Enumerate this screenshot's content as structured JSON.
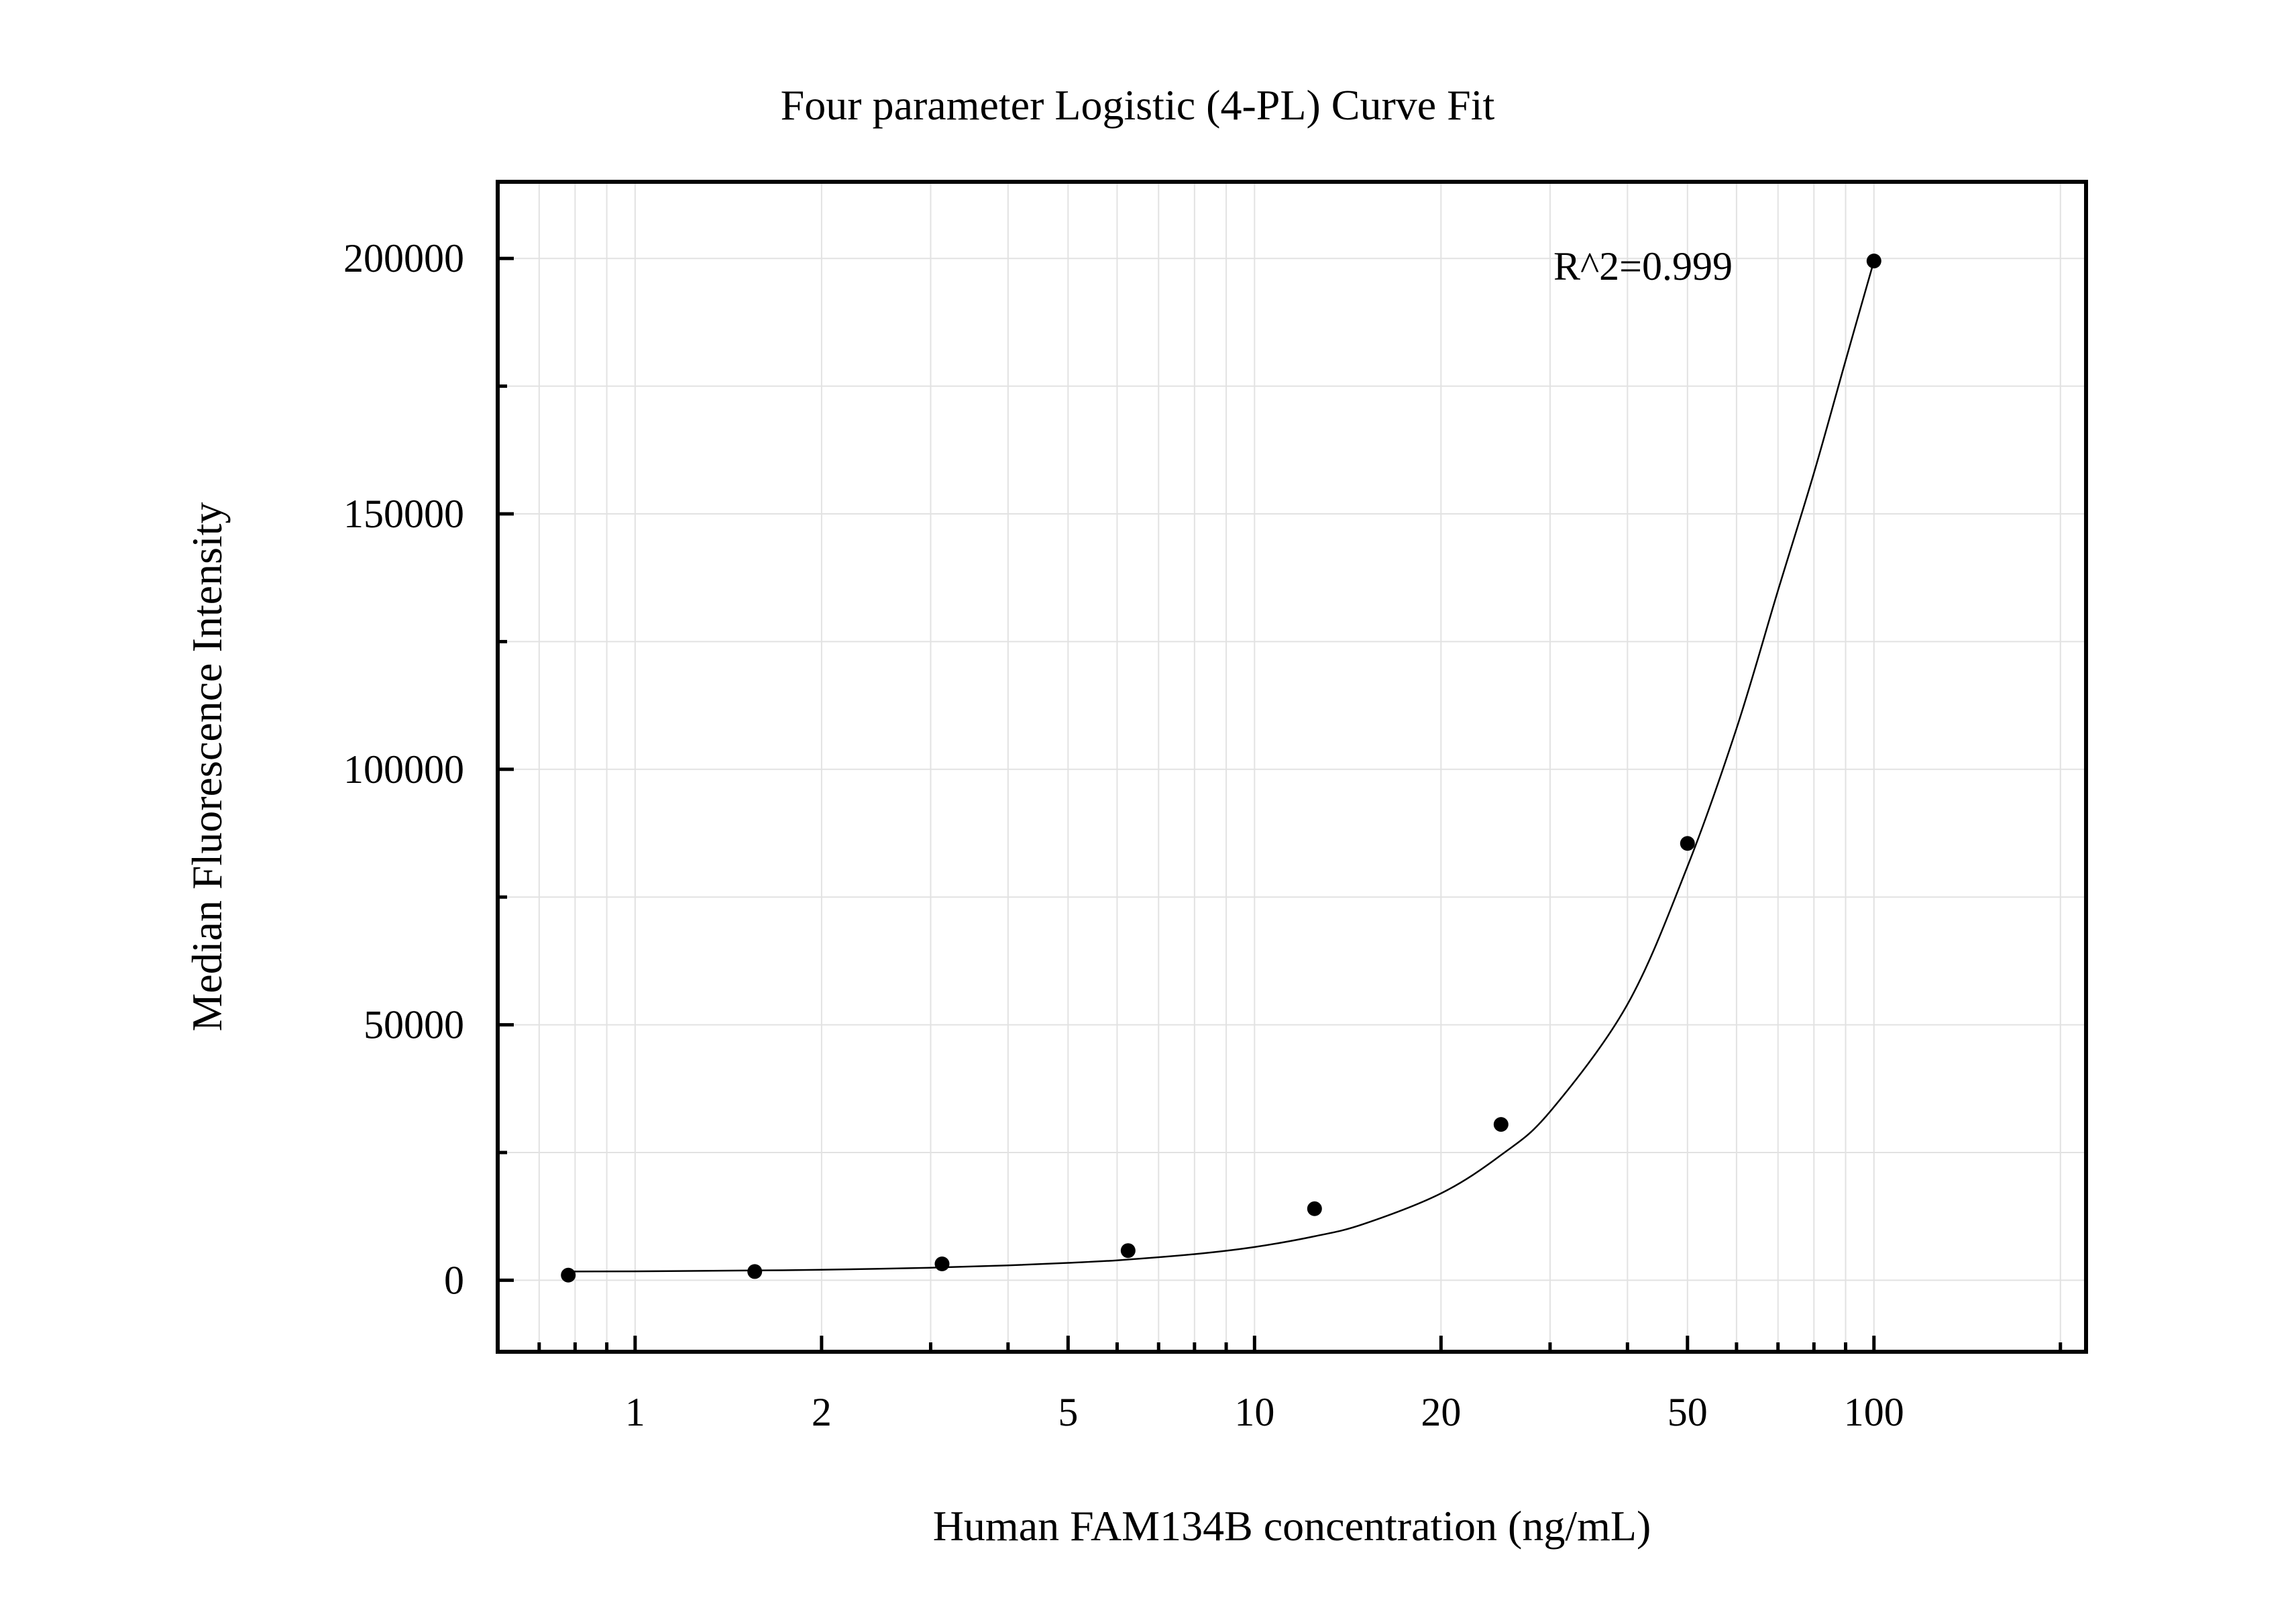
{
  "chart_data": {
    "type": "scatter",
    "title": "Four parameter Logistic (4-PL) Curve Fit",
    "xlabel": "Human FAM134B concentration (ng/mL)",
    "ylabel": "Median Fluorescence Intensity",
    "x_scale": "log",
    "xlim": [
      0.6,
      220
    ],
    "ylim": [
      -14000,
      215000
    ],
    "x_ticks": [
      1,
      2,
      5,
      10,
      20,
      50,
      100
    ],
    "x_tick_labels": [
      "1",
      "2",
      "5",
      "10",
      "20",
      "50",
      "100"
    ],
    "y_ticks": [
      0,
      50000,
      100000,
      150000,
      200000
    ],
    "y_tick_labels": [
      "0",
      "50000",
      "100000",
      "150000",
      "200000"
    ],
    "y_minor_ticks": [
      25000,
      75000,
      125000,
      175000
    ],
    "grid": true,
    "annotation": "R^2=0.999",
    "points": {
      "x": [
        0.78,
        1.56,
        3.13,
        6.25,
        12.5,
        25,
        50,
        100
      ],
      "y": [
        1000,
        1700,
        3200,
        5800,
        14000,
        30500,
        85500,
        199500
      ]
    },
    "fit": {
      "model": "4PL",
      "x": [
        0.78,
        1,
        1.5,
        2,
        3,
        4,
        5,
        6,
        8,
        10,
        12.5,
        15,
        20,
        25,
        30,
        40,
        50,
        60,
        70,
        80,
        90,
        100
      ],
      "y": [
        1700,
        1750,
        1900,
        2050,
        2450,
        2900,
        3400,
        3900,
        5100,
        6500,
        8600,
        11000,
        17000,
        24500,
        33000,
        54000,
        81000,
        108000,
        135000,
        158000,
        180000,
        199500
      ]
    }
  }
}
